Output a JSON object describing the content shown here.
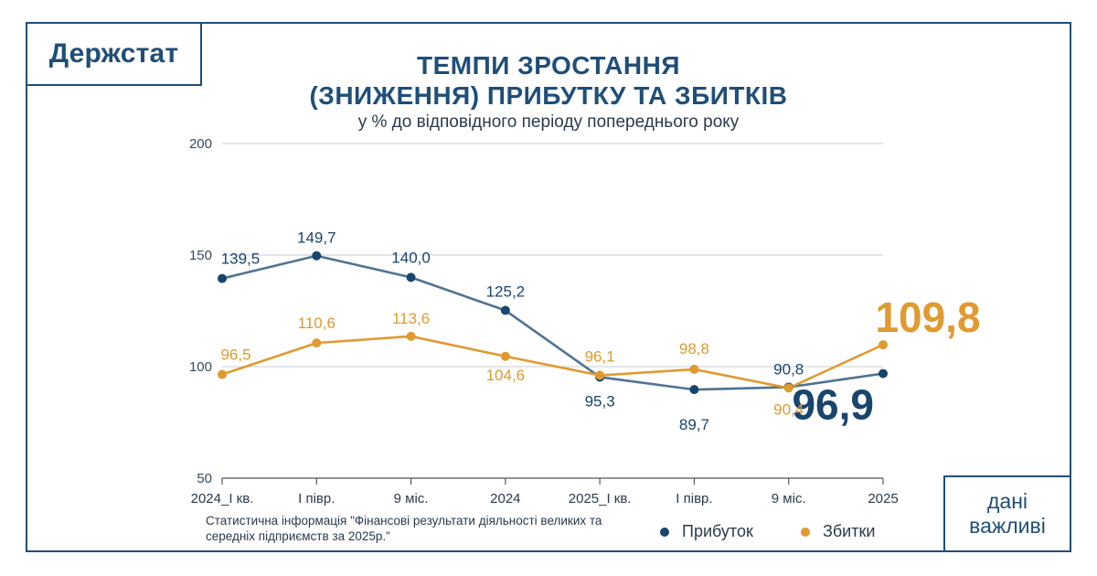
{
  "brand": "Держстат",
  "badge": {
    "line1": "дані",
    "line2": "важливі"
  },
  "colors": {
    "frame": "#1f4e79",
    "profit": "#4f7393",
    "profit_dot": "#17456e",
    "loss": "#e09a30"
  },
  "chart_data": {
    "type": "line",
    "title": [
      "ТЕМПИ ЗРОСТАННЯ",
      "(ЗНИЖЕННЯ) ПРИБУТКУ ТА ЗБИТКІВ"
    ],
    "subtitle": "у % до відповідного періоду попереднього року",
    "categories": [
      "2024_I кв.",
      "I півр.",
      "9 міс.",
      "2024",
      "2025_I кв.",
      "I півр.",
      "9 міс.",
      "2025"
    ],
    "y_ticks": [
      "200",
      "150",
      "100",
      "50"
    ],
    "ylim": [
      50,
      200
    ],
    "grid": true,
    "series": [
      {
        "name": "Прибуток",
        "values": [
          139.5,
          149.7,
          140.0,
          125.2,
          95.3,
          89.7,
          90.8,
          96.9
        ],
        "labels": [
          "139,5",
          "149,7",
          "140,0",
          "125,2",
          "95,3",
          "89,7",
          "90,8",
          "96,9"
        ]
      },
      {
        "name": "Збитки",
        "values": [
          96.5,
          110.6,
          113.6,
          104.6,
          96.1,
          98.8,
          90.4,
          109.8
        ],
        "labels": [
          "96,5",
          "110,6",
          "113,6",
          "104,6",
          "96,1",
          "98,8",
          "90,4",
          "109,8"
        ]
      }
    ],
    "legend_position": "bottom-right"
  },
  "source_note": "Статистична інформація \"Фінансові результати діяльності великих та середніх підприємств за 2025р.\""
}
